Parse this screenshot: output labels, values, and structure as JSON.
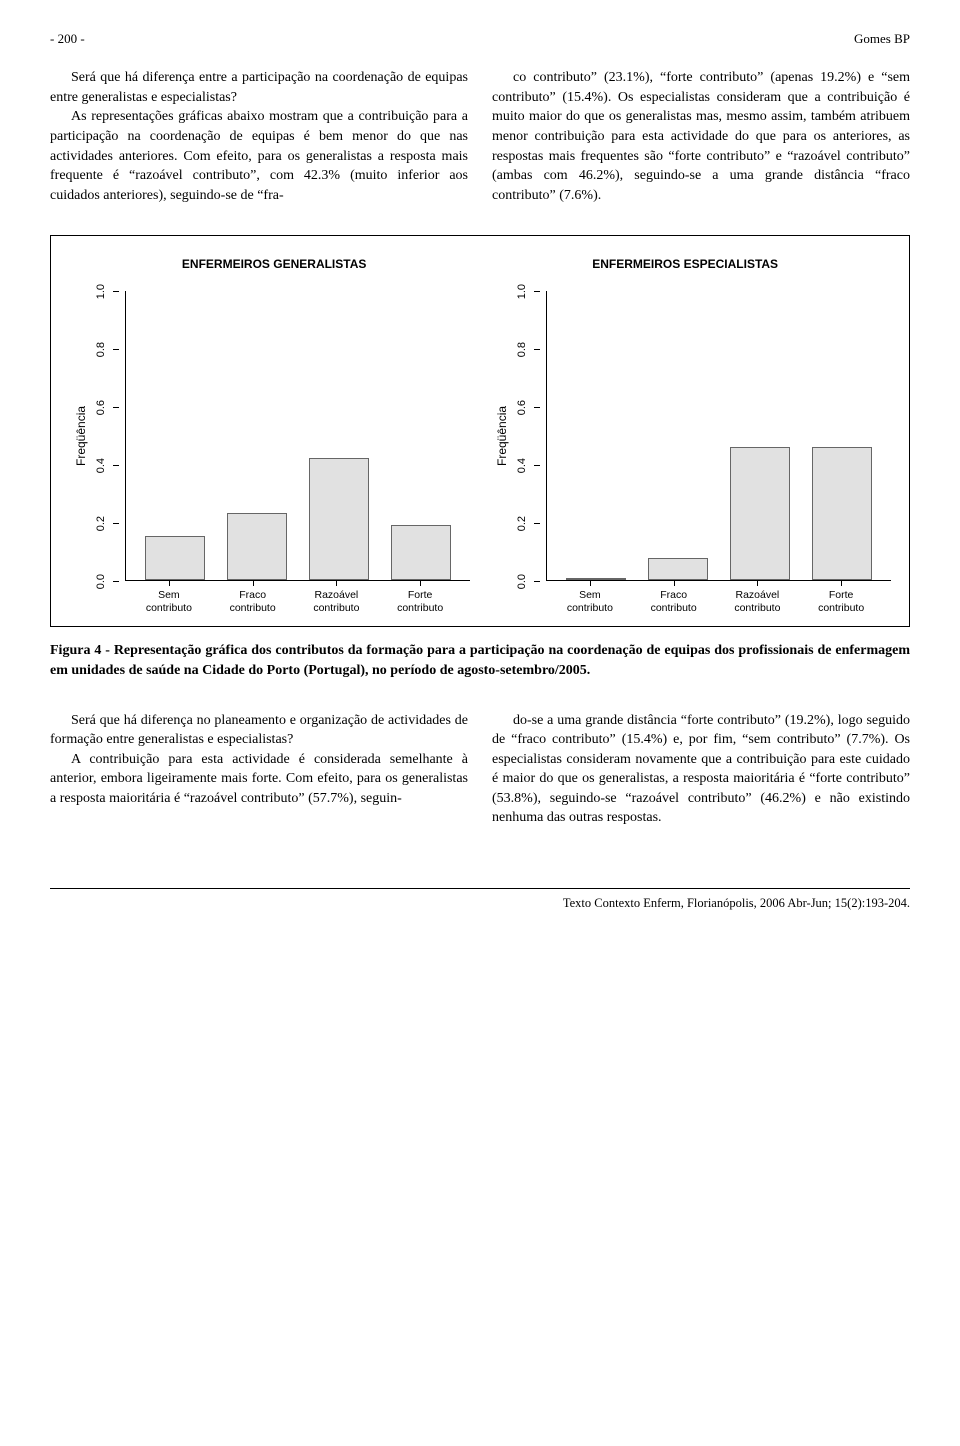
{
  "header": {
    "page_number": "- 200 -",
    "author": "Gomes BP"
  },
  "body": {
    "col1": "Será que há diferença entre a participação na coordenação de equipas entre generalistas e especialistas?\nAs representações gráficas abaixo mostram que a contribuição para a participação na coordenação de equipas é bem menor do que nas actividades anteriores. Com efeito, para os generalistas a resposta mais frequente é “razoável contributo”, com 42.3% (muito inferior aos cuidados anteriores), seguindo-se de “fra-",
    "col2": "co contributo” (23.1%), “forte contributo” (apenas 19.2%) e “sem contributo” (15.4%). Os especialistas consideram que a contribuição é muito maior do que os generalistas mas, mesmo assim, também atribuem menor contribuição para esta actividade do que para os anteriores, as respostas mais frequentes são “forte contributo” e “razoável contributo” (ambas com 46.2%), seguindo-se a uma grande distância “fraco contributo” (7.6%)."
  },
  "figure": {
    "chart_left": {
      "title": "ENFERMEIROS GENERALISTAS",
      "ylabel": "Freqüência",
      "yticks": [
        "1.0",
        "0.8",
        "0.6",
        "0.4",
        "0.2",
        "0.0"
      ],
      "ylim_max": 1.0,
      "categories": [
        "Sem\ncontributo",
        "Fraco\ncontributo",
        "Razoável\ncontributo",
        "Forte\ncontributo"
      ],
      "values": [
        0.154,
        0.231,
        0.423,
        0.192
      ],
      "bar_fill": "#e1e1e1",
      "bar_border": "#666666",
      "axis_color": "#000000"
    },
    "chart_right": {
      "title": "ENFERMEIROS ESPECIALISTAS",
      "ylabel": "Freqüência",
      "yticks": [
        "1.0",
        "0.8",
        "0.6",
        "0.4",
        "0.2",
        "0.0"
      ],
      "ylim_max": 1.0,
      "categories": [
        "Sem\ncontributo",
        "Fraco\ncontributo",
        "Razoável\ncontributo",
        "Forte\ncontributo"
      ],
      "values": [
        0.0,
        0.076,
        0.462,
        0.462
      ],
      "bar_fill": "#e1e1e1",
      "bar_border": "#666666",
      "axis_color": "#000000"
    },
    "caption": "Figura 4 - Representação gráfica dos contributos da formação para a participação na coordenação de equipas dos profissionais de enfermagem em unidades de saúde na Cidade do Porto (Portugal), no período de agosto-setembro/2005."
  },
  "body2": {
    "col1": "Será que há diferença no planeamento e organização de actividades de formação entre generalistas e especialistas?\nA contribuição para esta actividade é considerada semelhante à anterior, embora ligeiramente mais forte. Com efeito, para os generalistas a resposta maioritária é “razoável contributo” (57.7%), seguin-",
    "col2": "do-se a uma grande distância “forte contributo” (19.2%), logo seguido de “fraco contributo” (15.4%) e, por fim, “sem contributo” (7.7%). Os especialistas consideram novamente que a contribuição para este cuidado é maior do que os generalistas, a resposta maioritária é “forte contributo” (53.8%), seguindo-se “razoável contributo” (46.2%) e não existindo nenhuma das outras respostas."
  },
  "footer": {
    "journal": "Texto Contexto Enferm",
    "details": ", Florianópolis, 2006 Abr-Jun; 15(2):193-204."
  }
}
